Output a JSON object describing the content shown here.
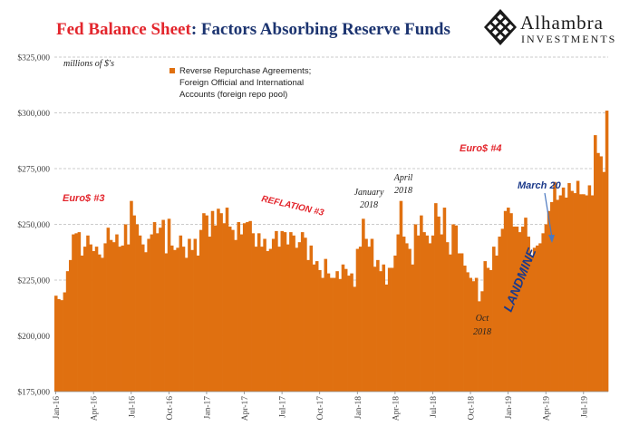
{
  "header": {
    "title_main": "Fed Balance Sheet",
    "title_sep": ": ",
    "title_rest": "Factors Absorbing Reserve Funds"
  },
  "logo": {
    "name": "Alhambra",
    "sub": "INVESTMENTS"
  },
  "colors": {
    "bar": "#e07010",
    "red_annotation": "#e3262d",
    "blue_annotation": "#1c3a8a",
    "grid": "#bbbbbb",
    "title_red": "#e3262d",
    "title_blue": "#1c3470"
  },
  "chart_data": {
    "type": "bar",
    "unit_note": "millions of $'s",
    "legend": [
      "Reverse Repurchase Agreements;",
      "Foreign Official and International",
      "Accounts (foreign repo pool)"
    ],
    "legend_position": "top-left",
    "series_name": "Reverse Repurchase Agreements; Foreign Official and International Accounts (foreign repo pool)",
    "ylim": [
      175000,
      325000
    ],
    "yticks": [
      "$175,000",
      "$200,000",
      "$225,000",
      "$250,000",
      "$275,000",
      "$300,000",
      "$325,000"
    ],
    "ytick_values": [
      175000,
      200000,
      225000,
      250000,
      275000,
      300000,
      325000
    ],
    "grid": true,
    "xticks": [
      "Jan-16",
      "Apr-16",
      "Jul-16",
      "Oct-16",
      "Jan-17",
      "Apr-17",
      "Jul-17",
      "Oct-17",
      "Jan-18",
      "Apr-18",
      "Jul-18",
      "Oct-18",
      "Jan-19",
      "Apr-19",
      "Jul-19"
    ],
    "xtick_week_index": [
      0,
      13,
      26,
      39,
      52,
      65,
      78,
      91,
      104,
      117,
      130,
      143,
      156,
      169,
      182
    ],
    "week_start": "2016-01-06",
    "values": [
      218000,
      216500,
      216000,
      219500,
      229000,
      234000,
      245500,
      246000,
      246500,
      236000,
      240000,
      245000,
      241000,
      238000,
      240000,
      236500,
      235000,
      241500,
      248500,
      243000,
      242000,
      245500,
      240000,
      240500,
      250000,
      241000,
      260500,
      254000,
      250000,
      245000,
      241000,
      237500,
      243500,
      245500,
      251000,
      246000,
      248500,
      252000,
      237000,
      252500,
      240500,
      238500,
      239500,
      245000,
      240000,
      235000,
      243500,
      238500,
      243500,
      236000,
      247500,
      255000,
      254000,
      244500,
      256000,
      249500,
      257000,
      255000,
      250500,
      257500,
      249000,
      247500,
      243000,
      251000,
      245500,
      250500,
      251000,
      251500,
      246000,
      240000,
      246000,
      240000,
      243500,
      238000,
      239000,
      243500,
      247000,
      240000,
      247000,
      246500,
      241000,
      246500,
      245000,
      239500,
      242000,
      246500,
      244000,
      234000,
      240500,
      232000,
      233500,
      229500,
      226000,
      234500,
      228000,
      226000,
      226000,
      229000,
      225500,
      232000,
      230000,
      227000,
      228000,
      222000,
      239000,
      240000,
      252500,
      243500,
      240000,
      243500,
      231000,
      234000,
      229000,
      232000,
      223000,
      230500,
      230500,
      236000,
      245500,
      260500,
      244500,
      241500,
      239000,
      232000,
      250000,
      245000,
      254000,
      246500,
      245000,
      241500,
      245000,
      259500,
      253500,
      245500,
      257500,
      242000,
      236500,
      250000,
      249500,
      237000,
      237000,
      231500,
      228500,
      226000,
      224500,
      226000,
      215500,
      220000,
      233500,
      230500,
      229500,
      240000,
      236000,
      244500,
      248000,
      256000,
      257500,
      255000,
      249000,
      249000,
      246500,
      249000,
      253000,
      244500,
      235500,
      239500,
      240500,
      241500,
      246000,
      250000,
      256000,
      260000,
      269000,
      261000,
      263000,
      266500,
      262000,
      268500,
      265000,
      264000,
      269500,
      263500,
      263500,
      263000,
      267500,
      263000,
      290000,
      282000,
      280500,
      273500,
      301000
    ]
  },
  "annotations": {
    "euro3": "Euro$ #3",
    "reflation3": "REFLATION #3",
    "euro4": "Euro$ #4",
    "jan2018_l1": "January",
    "jan2018_l2": "2018",
    "apr2018_l1": "April",
    "apr2018_l2": "2018",
    "oct2018_l1": "Oct",
    "oct2018_l2": "2018",
    "landmine": "LANDMINE",
    "march20": "March 20"
  }
}
